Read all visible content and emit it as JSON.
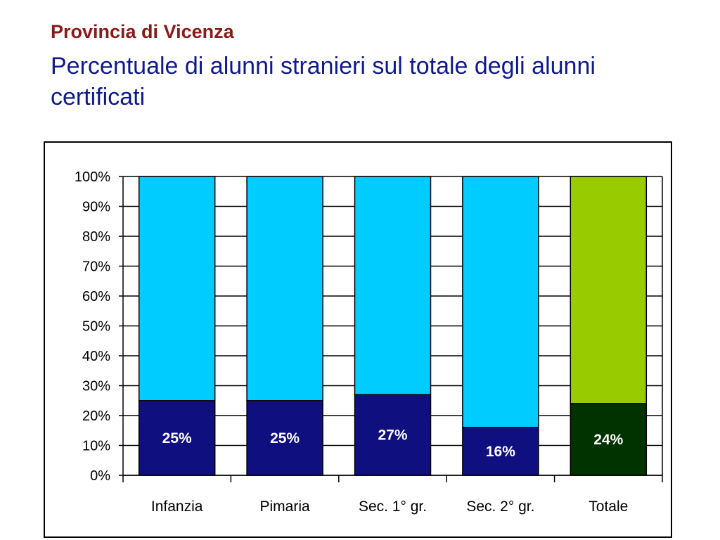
{
  "header": {
    "title": "Provincia di Vicenza",
    "subtitle": "Percentuale di alunni stranieri sul totale degli alunni certificati"
  },
  "chart_data": {
    "type": "bar",
    "stacked": true,
    "percent_stacked": true,
    "categories": [
      "Infanzia",
      "Pimaria",
      "Sec. 1° gr.",
      "Sec. 2° gr.",
      "Totale"
    ],
    "values": [
      25,
      25,
      27,
      16,
      24
    ],
    "data_labels": [
      "25%",
      "25%",
      "27%",
      "16%",
      "24%"
    ],
    "remainder": [
      75,
      75,
      73,
      84,
      76
    ],
    "ylim": [
      0,
      100
    ],
    "yticks": [
      "0%",
      "10%",
      "20%",
      "30%",
      "40%",
      "50%",
      "60%",
      "70%",
      "80%",
      "90%",
      "100%"
    ],
    "grid": true,
    "legend": "none",
    "colors": {
      "foreign": "#0f0f80",
      "rest": "#00ccff",
      "total_foreign": "#003300",
      "total_rest": "#99cc00"
    }
  }
}
